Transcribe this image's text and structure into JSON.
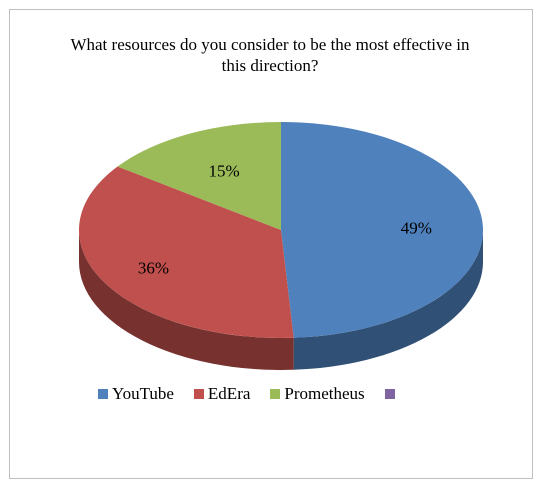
{
  "chart_data": {
    "type": "pie",
    "title": "What resources do you consider to be the most effective in this direction?",
    "categories": [
      "YouTube",
      "EdEra",
      "Prometheus"
    ],
    "values": [
      49,
      36,
      15
    ],
    "labels": [
      "49%",
      "36%",
      "15%"
    ],
    "colors": [
      "#4f81bd",
      "#c0504d",
      "#9bbb59"
    ],
    "extra_legend_color": "#8064a2",
    "legend_position": "bottom",
    "style": "3d"
  }
}
